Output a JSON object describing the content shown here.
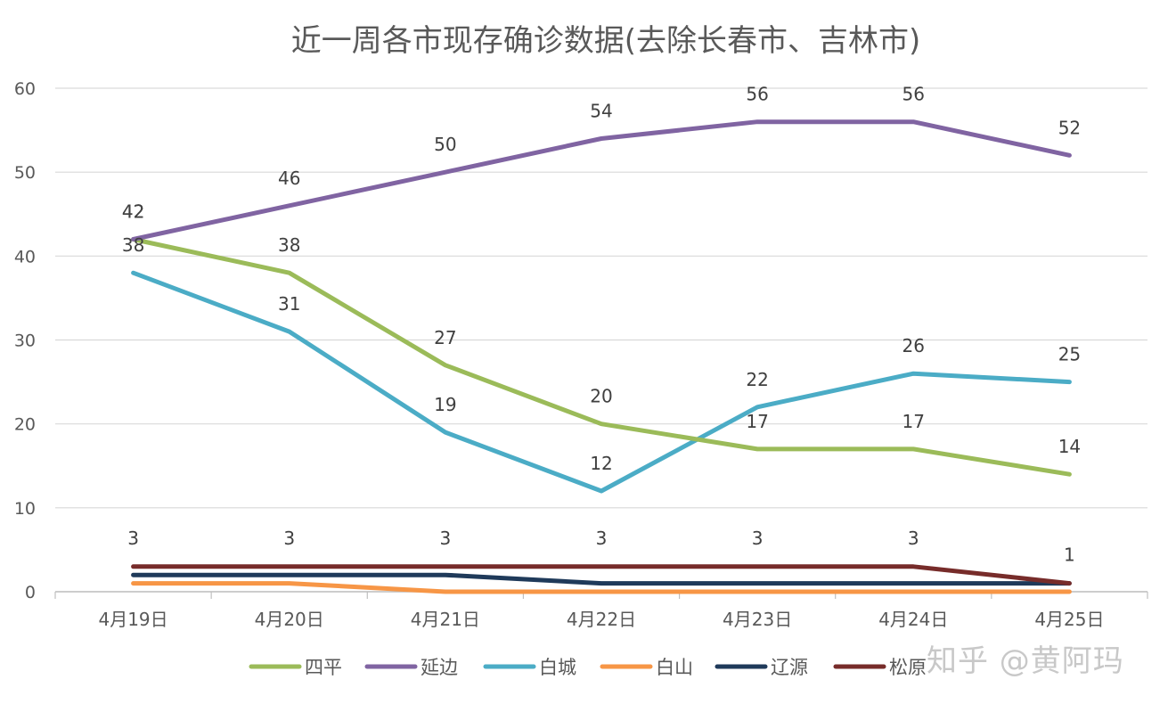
{
  "chart_data": {
    "type": "line",
    "title": "近一周各市现存确诊数据(去除长春市、吉林市)",
    "categories": [
      "4月19日",
      "4月20日",
      "4月21日",
      "4月22日",
      "4月23日",
      "4月24日",
      "4月25日"
    ],
    "ylim": [
      0,
      60
    ],
    "yticks": [
      0,
      10,
      20,
      30,
      40,
      50,
      60
    ],
    "grid": true,
    "legend_position": "bottom",
    "series": [
      {
        "name": "四平",
        "color": "#9bbb59",
        "values": [
          42,
          38,
          27,
          20,
          17,
          17,
          14
        ],
        "labeled": true
      },
      {
        "name": "延边",
        "color": "#8064a2",
        "values": [
          42,
          46,
          50,
          54,
          56,
          56,
          52
        ],
        "labeled": true
      },
      {
        "name": "白城",
        "color": "#4bacc6",
        "values": [
          38,
          31,
          19,
          12,
          22,
          26,
          25
        ],
        "labeled": true
      },
      {
        "name": "白山",
        "color": "#f79646",
        "values": [
          1,
          1,
          0,
          0,
          0,
          0,
          0
        ],
        "labeled": false
      },
      {
        "name": "辽源",
        "color": "#1f3a5a",
        "values": [
          2,
          2,
          2,
          1,
          1,
          1,
          1
        ],
        "labeled": false
      },
      {
        "name": "松原",
        "color": "#772c2a",
        "values": [
          3,
          3,
          3,
          3,
          3,
          3,
          1
        ],
        "labeled": true
      }
    ]
  },
  "watermark": "知乎 @黄阿玛"
}
